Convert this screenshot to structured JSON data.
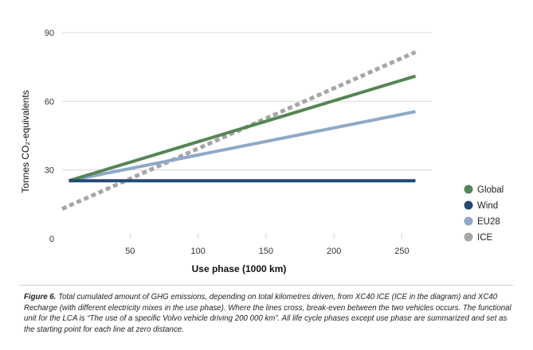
{
  "chart_data": {
    "type": "line",
    "ylabel": "Tonnes CO₂-equivalents",
    "xlabel": "Use phase (1000 km)",
    "xlim": [
      0,
      272
    ],
    "ylim": [
      0,
      90
    ],
    "xticks": [
      50,
      100,
      150,
      200,
      250
    ],
    "yticks": [
      0,
      30,
      60,
      90
    ],
    "grid": "horizontal",
    "legend_position": "right",
    "series": [
      {
        "name": "Global",
        "color": "#548654",
        "style": "solid",
        "x": [
          5,
          260
        ],
        "y": [
          25.3,
          71
        ]
      },
      {
        "name": "Wind",
        "color": "#244a73",
        "style": "solid",
        "x": [
          5,
          260
        ],
        "y": [
          25.3,
          25.3
        ]
      },
      {
        "name": "EU28",
        "color": "#8ea9c8",
        "style": "solid",
        "x": [
          5,
          260
        ],
        "y": [
          25.3,
          55.5
        ]
      },
      {
        "name": "ICE",
        "color": "#a6a6a6",
        "style": "dashed",
        "x": [
          0,
          260
        ],
        "y": [
          13,
          81.5
        ]
      }
    ]
  },
  "caption": {
    "label": "Figure 6.",
    "text": "Total cumulated amount of GHG emissions, depending on total kilometres driven, from XC40 ICE (ICE in the diagram) and XC40 Recharge (with different electricity mixes in the use phase). Where the lines cross, break-even between the two vehicles occurs. The functional unit for the LCA is “The use of a specific Volvo vehicle driving 200 000 km”. All life cycle phases except use phase are summarized and set as the starting point for each line at zero distance."
  }
}
